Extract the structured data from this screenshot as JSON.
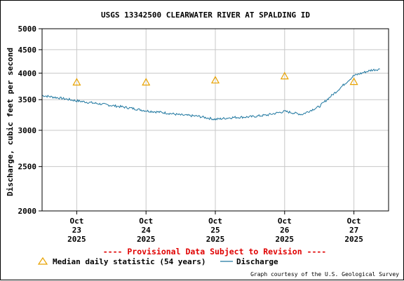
{
  "chart_data": {
    "type": "line",
    "title": "USGS 13342500 CLEARWATER RIVER AT SPALDING ID",
    "ylabel": "Discharge, cubic feet per second",
    "xlabel": "",
    "y_scale": "log",
    "ylim": [
      2000,
      5000
    ],
    "y_ticks": [
      {
        "value": 5000,
        "label": "5000"
      },
      {
        "value": 4500,
        "label": "4500"
      },
      {
        "value": 4000,
        "label": "4000"
      },
      {
        "value": 3500,
        "label": "3500"
      },
      {
        "value": 3000,
        "label": "3000"
      },
      {
        "value": 2500,
        "label": "2500"
      },
      {
        "value": 2000,
        "label": "2000"
      }
    ],
    "xlim": [
      "2025-10-22T12:00",
      "2025-10-27T12:00"
    ],
    "x_ticks": [
      {
        "value": "2025-10-23T00:00",
        "line1": "Oct",
        "line2": "23",
        "line3": "2025"
      },
      {
        "value": "2025-10-24T00:00",
        "line1": "Oct",
        "line2": "24",
        "line3": "2025"
      },
      {
        "value": "2025-10-25T00:00",
        "line1": "Oct",
        "line2": "25",
        "line3": "2025"
      },
      {
        "value": "2025-10-26T00:00",
        "line1": "Oct",
        "line2": "26",
        "line3": "2025"
      },
      {
        "value": "2025-10-27T00:00",
        "line1": "Oct",
        "line2": "27",
        "line3": "2025"
      }
    ],
    "grid": true,
    "series": [
      {
        "name": "Discharge",
        "color": "#1f77a0",
        "points": [
          [
            "2025-10-22T12:00",
            3575
          ],
          [
            "2025-10-22T18:00",
            3530
          ],
          [
            "2025-10-23T00:00",
            3480
          ],
          [
            "2025-10-23T06:00",
            3440
          ],
          [
            "2025-10-23T12:00",
            3400
          ],
          [
            "2025-10-23T18:00",
            3360
          ],
          [
            "2025-10-24T00:00",
            3310
          ],
          [
            "2025-10-24T06:00",
            3280
          ],
          [
            "2025-10-24T12:00",
            3240
          ],
          [
            "2025-10-24T18:00",
            3220
          ],
          [
            "2025-10-25T00:00",
            3170
          ],
          [
            "2025-10-25T06:00",
            3200
          ],
          [
            "2025-10-25T12:00",
            3210
          ],
          [
            "2025-10-25T18:00",
            3240
          ],
          [
            "2025-10-26T00:00",
            3300
          ],
          [
            "2025-10-26T06:00",
            3250
          ],
          [
            "2025-10-26T12:00",
            3380
          ],
          [
            "2025-10-26T18:00",
            3650
          ],
          [
            "2025-10-27T00:00",
            3950
          ],
          [
            "2025-10-27T06:00",
            4060
          ],
          [
            "2025-10-27T09:00",
            4080
          ]
        ]
      },
      {
        "name": "Median daily statistic (54 years)",
        "color": "#e8a200",
        "marker": "triangle",
        "points": [
          [
            "2025-10-23T00:00",
            3820
          ],
          [
            "2025-10-24T00:00",
            3820
          ],
          [
            "2025-10-25T00:00",
            3860
          ],
          [
            "2025-10-26T00:00",
            3940
          ],
          [
            "2025-10-27T00:00",
            3830
          ]
        ]
      }
    ],
    "legend": {
      "placement": "bottom",
      "median_label": "Median daily statistic (54 years)",
      "discharge_label": "Discharge"
    },
    "provisional_note": "---- Provisional Data Subject to Revision ----",
    "credit": "Graph courtesy of the U.S. Geological Survey"
  }
}
